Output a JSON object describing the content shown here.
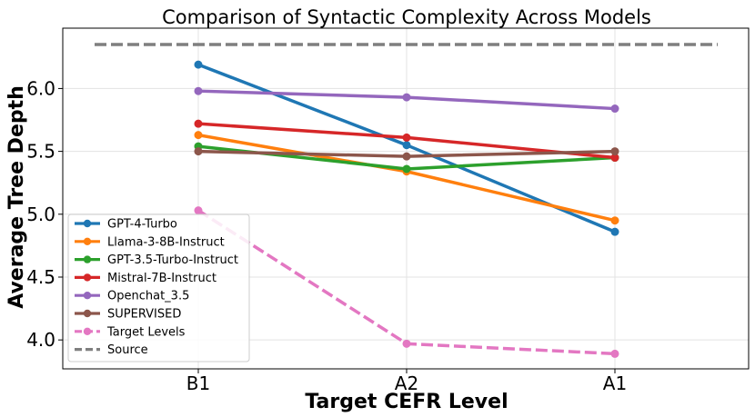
{
  "chart_data": {
    "type": "line",
    "title": "Comparison of Syntactic Complexity Across Models",
    "xlabel": "Target CEFR Level",
    "ylabel": "Average Tree Depth",
    "categories": [
      "B1",
      "A2",
      "A1"
    ],
    "ylim": [
      3.77,
      6.48
    ],
    "yticks": [
      4.0,
      4.5,
      5.0,
      5.5,
      6.0
    ],
    "ytick_labels": [
      "4.0",
      "4.5",
      "5.0",
      "5.5",
      "6.0"
    ],
    "grid": true,
    "legend_position": "lower-left",
    "series": [
      {
        "name": "GPT-4-Turbo",
        "values": [
          6.19,
          5.55,
          4.86
        ],
        "color": "#1f77b4",
        "style": "solid"
      },
      {
        "name": "Llama-3-8B-Instruct",
        "values": [
          5.63,
          5.34,
          4.95
        ],
        "color": "#ff7f0e",
        "style": "solid"
      },
      {
        "name": "GPT-3.5-Turbo-Instruct",
        "values": [
          5.54,
          5.36,
          5.45
        ],
        "color": "#2ca02c",
        "style": "solid"
      },
      {
        "name": "Mistral-7B-Instruct",
        "values": [
          5.72,
          5.61,
          5.45
        ],
        "color": "#d62728",
        "style": "solid"
      },
      {
        "name": "Openchat_3.5",
        "values": [
          5.98,
          5.93,
          5.84
        ],
        "color": "#9467bd",
        "style": "solid"
      },
      {
        "name": "SUPERVISED",
        "values": [
          5.5,
          5.46,
          5.5
        ],
        "color": "#8c564b",
        "style": "solid"
      },
      {
        "name": "Target Levels",
        "values": [
          5.03,
          3.97,
          3.89
        ],
        "color": "#e377c2",
        "style": "dashed"
      }
    ],
    "reference_line": {
      "name": "Source",
      "value": 6.35,
      "color": "#7f7f7f",
      "style": "dashed"
    }
  }
}
